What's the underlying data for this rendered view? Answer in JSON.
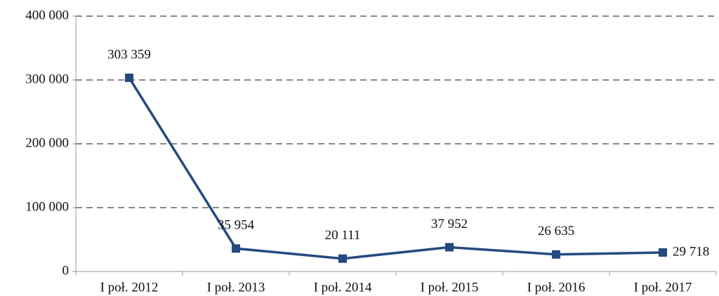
{
  "chart_data": {
    "type": "line",
    "categories": [
      "I poł. 2012",
      "I poł. 2013",
      "I poł. 2014",
      "I poł. 2015",
      "I poł. 2016",
      "I poł. 2017"
    ],
    "series": [
      {
        "color": "#254a7f",
        "values": [
          303359,
          35954,
          20111,
          37952,
          26635,
          29718
        ],
        "value_labels": [
          "303 359",
          "35 954",
          "20 111",
          "37 952",
          "26 635",
          "29 718"
        ]
      }
    ],
    "ylim": [
      0,
      400000
    ],
    "yticks": [
      0,
      {
        "value": 100000,
        "label": "100 000"
      },
      {
        "value": 200000,
        "label": "200 000"
      },
      {
        "value": 300000,
        "label": "300 000"
      },
      {
        "value": 400000,
        "label": "400 000"
      }
    ],
    "grid": true
  }
}
